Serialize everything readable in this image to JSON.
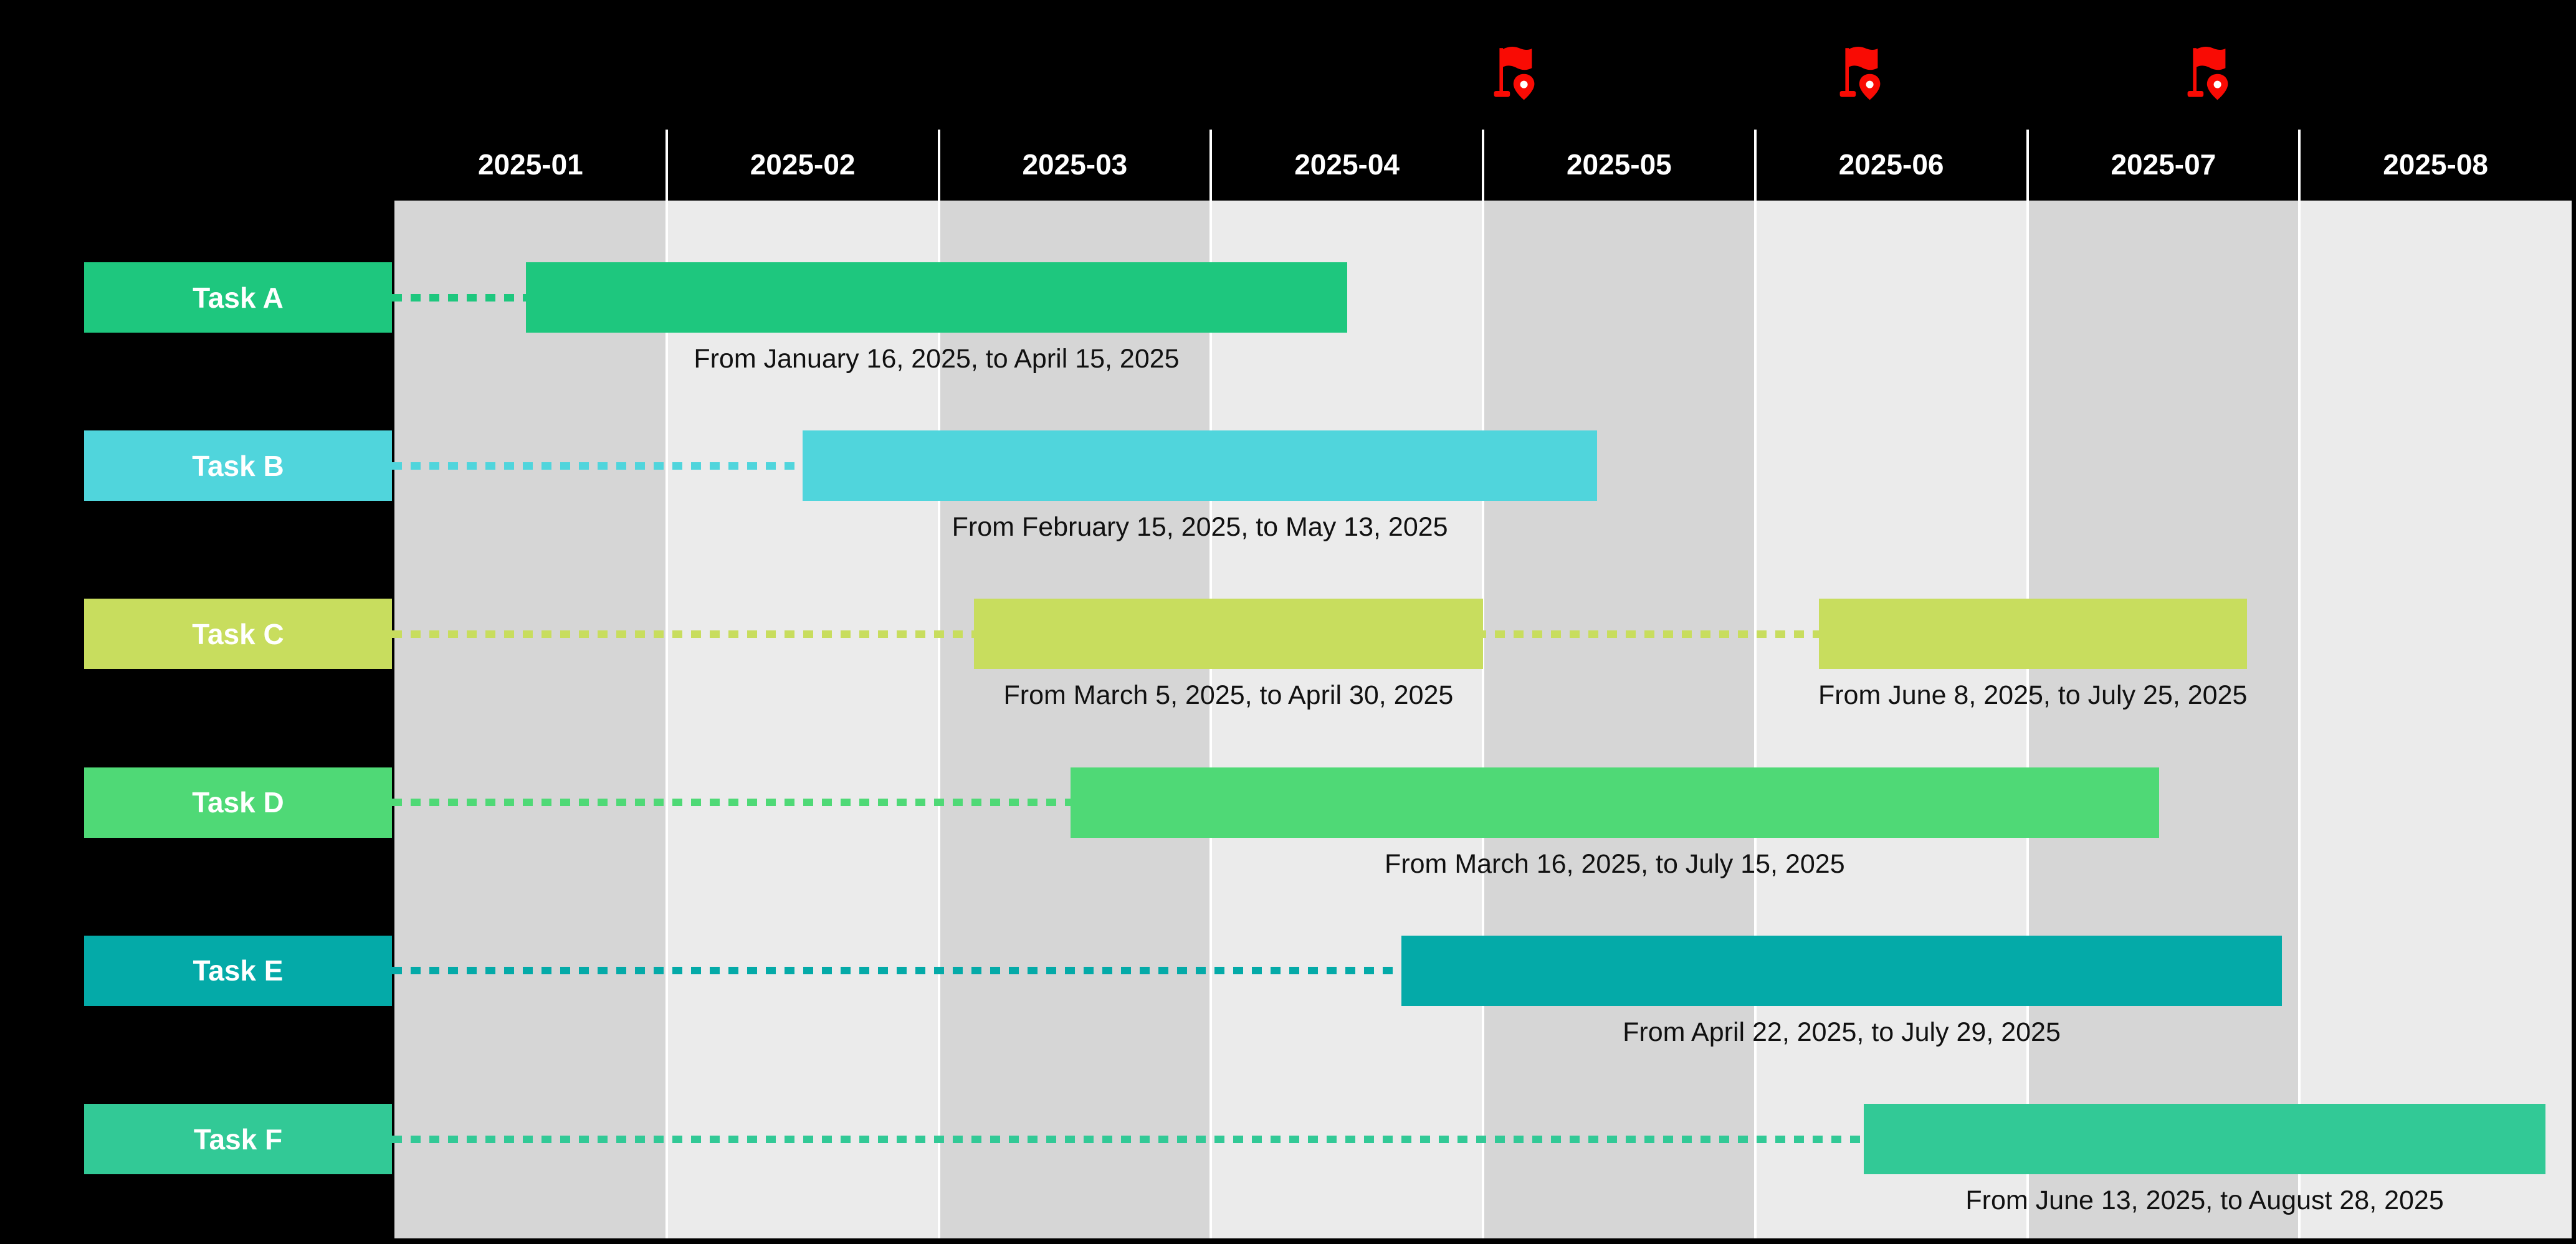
{
  "chart_data": {
    "type": "gantt",
    "title": "",
    "months": [
      "2025-01",
      "2025-02",
      "2025-03",
      "2025-04",
      "2025-05",
      "2025-06",
      "2025-07",
      "2025-08"
    ],
    "tasks": [
      {
        "label": "Task A",
        "color": "#1ec77e",
        "segments": [
          {
            "start": "2025-01-16",
            "end": "2025-04-15",
            "caption": "From January 16, 2025, to April 15, 2025"
          }
        ]
      },
      {
        "label": "Task B",
        "color": "#50d5dc",
        "segments": [
          {
            "start": "2025-02-15",
            "end": "2025-05-13",
            "caption": "From February 15, 2025, to May 13, 2025"
          }
        ]
      },
      {
        "label": "Task C",
        "color": "#c8dd5e",
        "segments": [
          {
            "start": "2025-03-05",
            "end": "2025-04-30",
            "caption": "From March 5, 2025, to April 30, 2025"
          },
          {
            "start": "2025-06-08",
            "end": "2025-07-25",
            "caption": "From June 8, 2025, to July 25, 2025"
          }
        ]
      },
      {
        "label": "Task D",
        "color": "#4fd976",
        "segments": [
          {
            "start": "2025-03-16",
            "end": "2025-07-15",
            "caption": "From March 16, 2025, to July 15, 2025"
          }
        ]
      },
      {
        "label": "Task E",
        "color": "#04aaa8",
        "segments": [
          {
            "start": "2025-04-22",
            "end": "2025-07-29",
            "caption": "From April 22, 2025, to July 29, 2025"
          }
        ]
      },
      {
        "label": "Task F",
        "color": "#32c996",
        "segments": [
          {
            "start": "2025-06-13",
            "end": "2025-08-28",
            "caption": "From June 13, 2025, to August 28, 2025"
          }
        ]
      }
    ],
    "milestones": [
      {
        "date": "2025-05-05",
        "approx": true
      },
      {
        "date": "2025-06-13",
        "approx": true
      },
      {
        "date": "2025-07-22",
        "approx": true
      }
    ],
    "colors": {
      "background": "#000000",
      "column_dark": "#d6d6d6",
      "column_light": "#ebebeb",
      "divider": "#ffffff",
      "month_text": "#ffffff",
      "caption_text": "#111111",
      "task_label_text": "#ffffff",
      "milestone_flag": "#f90b04"
    },
    "layout": {
      "grid": "alternating shaded month columns",
      "legend_position": "none",
      "axis": "months 2025-01 through 2025-08 across top"
    }
  }
}
